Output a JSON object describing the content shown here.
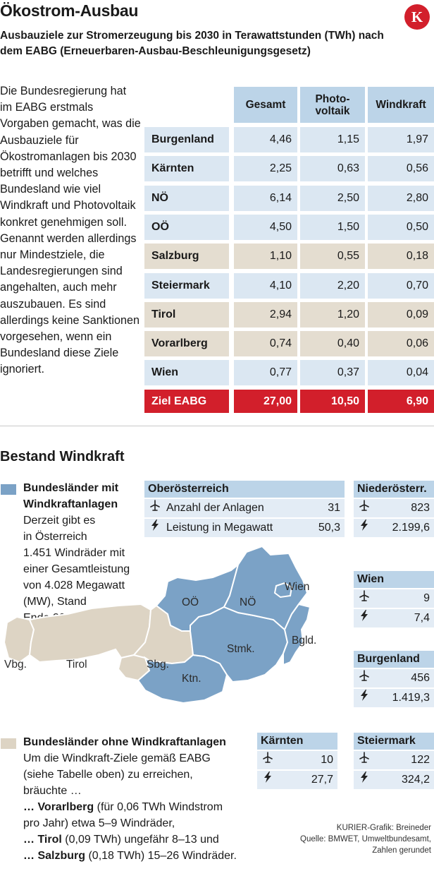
{
  "header": {
    "title": "Ökostrom-Ausbau",
    "subtitle": "Ausbauziele zur Stromerzeugung bis 2030 in Terawattstunden (TWh) nach dem EABG (Erneuerbaren-Ausbau-Beschleunigungsgesetz)",
    "logo": "K"
  },
  "intro_text": "Die Bundesregierung hat im EABG erstmals Vorgaben gemacht, was die Ausbauziele für Ökostromanlagen bis 2030 betrifft und welches Bundesland wie viel Windkraft und Photovoltaik konkret genehmigen soll. Genannt werden allerdings nur Mindestziele, die Landesregierungen sind angehalten, auch mehr auszubauen. Es sind allerdings keine Sanktionen vorgesehen, wenn ein Bundesland diese Ziele ignoriert.",
  "table": {
    "headers": [
      "Gesamt",
      "Photo- voltaik",
      "Windkraft"
    ],
    "rows": [
      {
        "name": "Burgenland",
        "gesamt": "4,46",
        "pv": "1,15",
        "wind": "1,97",
        "no_wind": false
      },
      {
        "name": "Kärnten",
        "gesamt": "2,25",
        "pv": "0,63",
        "wind": "0,56",
        "no_wind": false
      },
      {
        "name": "NÖ",
        "gesamt": "6,14",
        "pv": "2,50",
        "wind": "2,80",
        "no_wind": false
      },
      {
        "name": "OÖ",
        "gesamt": "4,50",
        "pv": "1,50",
        "wind": "0,50",
        "no_wind": false
      },
      {
        "name": "Salzburg",
        "gesamt": "1,10",
        "pv": "0,55",
        "wind": "0,18",
        "no_wind": true
      },
      {
        "name": "Steiermark",
        "gesamt": "4,10",
        "pv": "2,20",
        "wind": "0,70",
        "no_wind": false
      },
      {
        "name": "Tirol",
        "gesamt": "2,94",
        "pv": "1,20",
        "wind": "0,09",
        "no_wind": true
      },
      {
        "name": "Vorarlberg",
        "gesamt": "0,74",
        "pv": "0,40",
        "wind": "0,06",
        "no_wind": true
      },
      {
        "name": "Wien",
        "gesamt": "0,77",
        "pv": "0,37",
        "wind": "0,04",
        "no_wind": false
      }
    ],
    "total": {
      "name": "Ziel EABG",
      "gesamt": "27,00",
      "pv": "10,50",
      "wind": "6,90"
    }
  },
  "section2": {
    "title": "Bestand Windkraft",
    "legend_with": {
      "title_line1": "Bundesländer mit",
      "title_line2": "Windkraftanlagen",
      "text_lines": [
        "Derzeit gibt es",
        "in Österreich",
        "1.451 Windräder mit",
        "einer Gesamtleistung",
        "von 4.028 Megawatt",
        "(MW), Stand",
        "Ende 2024."
      ]
    },
    "legend_without": {
      "title": "Bundesländer ohne Windkraftanlagen",
      "text_lines": [
        "Um die Windkraft-Ziele gemäß EABG",
        "(siehe Tabelle oben) zu erreichen,",
        "bräuchte …"
      ],
      "items": [
        {
          "bold": "… Vorarlberg",
          "rest": " (für 0,06 TWh Windstrom"
        },
        {
          "bold": "",
          "rest": "pro Jahr) etwa 5–9 Windräder,"
        },
        {
          "bold": "… Tirol",
          "rest": " (0,09 TWh) ungefähr 8–13 und"
        },
        {
          "bold": "… Salzburg",
          "rest": " (0,18 TWh) 15–26 Windräder."
        }
      ]
    },
    "map_labels": {
      "vbg": "Vbg.",
      "tirol": "Tirol",
      "sbg": "Sbg.",
      "ooe": "OÖ",
      "noe": "NÖ",
      "wien": "Wien",
      "stmk": "Stmk.",
      "bgld": "Bgld.",
      "ktn": "Ktn."
    },
    "boxes": {
      "ooe": {
        "title": "Oberösterreich",
        "anlagen_label": "Anzahl der Anlagen",
        "anlagen": "31",
        "leistung_label": "Leistung in Megawatt",
        "leistung": "50,3"
      },
      "noe": {
        "title": "Niederösterr.",
        "anlagen": "823",
        "leistung": "2.199,6"
      },
      "wien": {
        "title": "Wien",
        "anlagen": "9",
        "leistung": "7,4"
      },
      "bgld": {
        "title": "Burgenland",
        "anlagen": "456",
        "leistung": "1.419,3"
      },
      "ktn": {
        "title": "Kärnten",
        "anlagen": "10",
        "leistung": "27,7"
      },
      "stmk": {
        "title": "Steiermark",
        "anlagen": "122",
        "leistung": "324,2"
      }
    },
    "icons": {
      "turbine": "wind-turbine-icon",
      "power": "lightning-icon"
    },
    "colors": {
      "with_wind": "#7ba2c6",
      "without_wind": "#ddd4c4",
      "accent": "#d21f2b"
    }
  },
  "credit": {
    "line1": "KURIER-Grafik: Breineder",
    "line2": "Quelle: BMWET, Umweltbundesamt,",
    "line3": "Zahlen gerundet"
  }
}
